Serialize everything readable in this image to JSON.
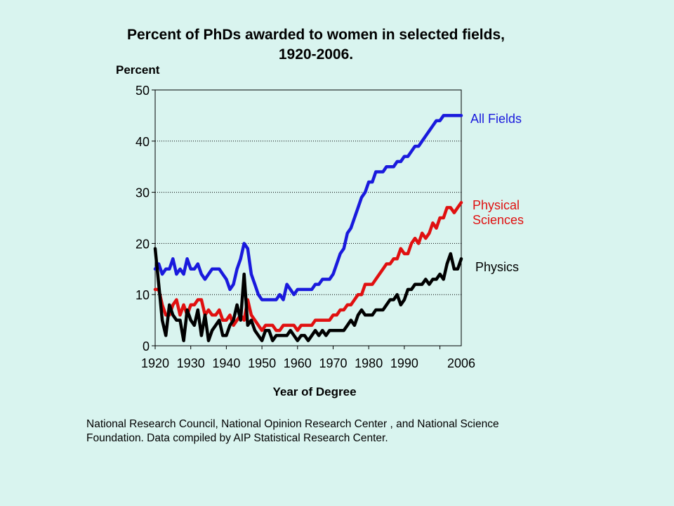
{
  "slide": {
    "background": "#d9f4ef",
    "title_line1": "Percent of PhDs awarded to women in selected fields,",
    "title_line2": "1920-2006.",
    "source_line1": "National Research Council, National Opinion Research Center , and National Science",
    "source_line2": "Foundation. Data compiled by AIP Statistical Research Center."
  },
  "chart_data": {
    "type": "line",
    "title": "Percent of PhDs awarded to women in selected fields, 1920-2006.",
    "xlabel": "Year of Degree",
    "ylabel": "Percent",
    "xlim": [
      1920,
      2006
    ],
    "ylim": [
      0,
      50
    ],
    "x_tick_values": [
      1920,
      1930,
      1940,
      1950,
      1960,
      1970,
      1980,
      1990,
      2006
    ],
    "x_tick_labels": [
      "1920",
      "1930",
      "1940",
      "1950",
      "1960",
      "1970",
      "1980",
      "1990",
      "2006"
    ],
    "y_tick_values": [
      0,
      10,
      20,
      30,
      40,
      50
    ],
    "y_tick_labels": [
      "0",
      "10",
      "20",
      "30",
      "40",
      "50"
    ],
    "grid": "dotted horizontal lines at 10, 20, 30, 40",
    "legend": "direct labels at right of lines",
    "series": [
      {
        "name": "All Fields",
        "color": "#1a1add",
        "points": [
          [
            1920,
            15
          ],
          [
            1921,
            16
          ],
          [
            1922,
            14
          ],
          [
            1923,
            15
          ],
          [
            1924,
            15
          ],
          [
            1925,
            17
          ],
          [
            1926,
            14
          ],
          [
            1927,
            15
          ],
          [
            1928,
            14
          ],
          [
            1929,
            17
          ],
          [
            1930,
            15
          ],
          [
            1931,
            15
          ],
          [
            1932,
            16
          ],
          [
            1933,
            14
          ],
          [
            1934,
            13
          ],
          [
            1935,
            14
          ],
          [
            1936,
            15
          ],
          [
            1937,
            15
          ],
          [
            1938,
            15
          ],
          [
            1939,
            14
          ],
          [
            1940,
            13
          ],
          [
            1941,
            11
          ],
          [
            1942,
            12
          ],
          [
            1943,
            15
          ],
          [
            1944,
            17
          ],
          [
            1945,
            20
          ],
          [
            1946,
            19
          ],
          [
            1947,
            14
          ],
          [
            1948,
            12
          ],
          [
            1949,
            10
          ],
          [
            1950,
            9
          ],
          [
            1951,
            9
          ],
          [
            1952,
            9
          ],
          [
            1953,
            9
          ],
          [
            1954,
            9
          ],
          [
            1955,
            10
          ],
          [
            1956,
            9
          ],
          [
            1957,
            12
          ],
          [
            1958,
            11
          ],
          [
            1959,
            10
          ],
          [
            1960,
            11
          ],
          [
            1961,
            11
          ],
          [
            1962,
            11
          ],
          [
            1963,
            11
          ],
          [
            1964,
            11
          ],
          [
            1965,
            12
          ],
          [
            1966,
            12
          ],
          [
            1967,
            13
          ],
          [
            1968,
            13
          ],
          [
            1969,
            13
          ],
          [
            1970,
            14
          ],
          [
            1971,
            16
          ],
          [
            1972,
            18
          ],
          [
            1973,
            19
          ],
          [
            1974,
            22
          ],
          [
            1975,
            23
          ],
          [
            1976,
            25
          ],
          [
            1977,
            27
          ],
          [
            1978,
            29
          ],
          [
            1979,
            30
          ],
          [
            1980,
            32
          ],
          [
            1981,
            32
          ],
          [
            1982,
            34
          ],
          [
            1983,
            34
          ],
          [
            1984,
            34
          ],
          [
            1985,
            35
          ],
          [
            1986,
            35
          ],
          [
            1987,
            35
          ],
          [
            1988,
            36
          ],
          [
            1989,
            36
          ],
          [
            1990,
            37
          ],
          [
            1991,
            37
          ],
          [
            1992,
            38
          ],
          [
            1993,
            39
          ],
          [
            1994,
            39
          ],
          [
            1995,
            40
          ],
          [
            1996,
            41
          ],
          [
            1997,
            42
          ],
          [
            1998,
            43
          ],
          [
            1999,
            44
          ],
          [
            2000,
            44
          ],
          [
            2001,
            45
          ],
          [
            2002,
            45
          ],
          [
            2003,
            45
          ],
          [
            2004,
            45
          ],
          [
            2005,
            45
          ],
          [
            2006,
            45
          ]
        ]
      },
      {
        "name": "Physical Sciences",
        "label_line1": "Physical",
        "label_line2": "Sciences",
        "color": "#e01010",
        "points": [
          [
            1920,
            11
          ],
          [
            1921,
            11
          ],
          [
            1922,
            8
          ],
          [
            1923,
            6
          ],
          [
            1924,
            6
          ],
          [
            1925,
            8
          ],
          [
            1926,
            9
          ],
          [
            1927,
            6
          ],
          [
            1928,
            8
          ],
          [
            1929,
            6
          ],
          [
            1930,
            8
          ],
          [
            1931,
            8
          ],
          [
            1932,
            9
          ],
          [
            1933,
            9
          ],
          [
            1934,
            6
          ],
          [
            1935,
            7
          ],
          [
            1936,
            6
          ],
          [
            1937,
            6
          ],
          [
            1938,
            7
          ],
          [
            1939,
            5
          ],
          [
            1940,
            5
          ],
          [
            1941,
            6
          ],
          [
            1942,
            4
          ],
          [
            1943,
            5
          ],
          [
            1944,
            6
          ],
          [
            1945,
            5
          ],
          [
            1946,
            9
          ],
          [
            1947,
            6
          ],
          [
            1948,
            5
          ],
          [
            1949,
            4
          ],
          [
            1950,
            3
          ],
          [
            1951,
            4
          ],
          [
            1952,
            4
          ],
          [
            1953,
            4
          ],
          [
            1954,
            3
          ],
          [
            1955,
            3
          ],
          [
            1956,
            4
          ],
          [
            1957,
            4
          ],
          [
            1958,
            4
          ],
          [
            1959,
            4
          ],
          [
            1960,
            3
          ],
          [
            1961,
            4
          ],
          [
            1962,
            4
          ],
          [
            1963,
            4
          ],
          [
            1964,
            4
          ],
          [
            1965,
            5
          ],
          [
            1966,
            5
          ],
          [
            1967,
            5
          ],
          [
            1968,
            5
          ],
          [
            1969,
            5
          ],
          [
            1970,
            6
          ],
          [
            1971,
            6
          ],
          [
            1972,
            7
          ],
          [
            1973,
            7
          ],
          [
            1974,
            8
          ],
          [
            1975,
            8
          ],
          [
            1976,
            9
          ],
          [
            1977,
            10
          ],
          [
            1978,
            10
          ],
          [
            1979,
            12
          ],
          [
            1980,
            12
          ],
          [
            1981,
            12
          ],
          [
            1982,
            13
          ],
          [
            1983,
            14
          ],
          [
            1984,
            15
          ],
          [
            1985,
            16
          ],
          [
            1986,
            16
          ],
          [
            1987,
            17
          ],
          [
            1988,
            17
          ],
          [
            1989,
            19
          ],
          [
            1990,
            18
          ],
          [
            1991,
            18
          ],
          [
            1992,
            20
          ],
          [
            1993,
            21
          ],
          [
            1994,
            20
          ],
          [
            1995,
            22
          ],
          [
            1996,
            21
          ],
          [
            1997,
            22
          ],
          [
            1998,
            24
          ],
          [
            1999,
            23
          ],
          [
            2000,
            25
          ],
          [
            2001,
            25
          ],
          [
            2002,
            27
          ],
          [
            2003,
            27
          ],
          [
            2004,
            26
          ],
          [
            2005,
            27
          ],
          [
            2006,
            28
          ]
        ]
      },
      {
        "name": "Physics",
        "color": "#000000",
        "points": [
          [
            1920,
            19
          ],
          [
            1921,
            12
          ],
          [
            1922,
            5
          ],
          [
            1923,
            2
          ],
          [
            1924,
            8
          ],
          [
            1925,
            6
          ],
          [
            1926,
            5
          ],
          [
            1927,
            5
          ],
          [
            1928,
            1
          ],
          [
            1929,
            7
          ],
          [
            1930,
            5
          ],
          [
            1931,
            4
          ],
          [
            1932,
            7
          ],
          [
            1933,
            2
          ],
          [
            1934,
            6
          ],
          [
            1935,
            1
          ],
          [
            1936,
            3
          ],
          [
            1937,
            4
          ],
          [
            1938,
            5
          ],
          [
            1939,
            2
          ],
          [
            1940,
            2
          ],
          [
            1941,
            4
          ],
          [
            1942,
            5
          ],
          [
            1943,
            8
          ],
          [
            1944,
            5
          ],
          [
            1945,
            14
          ],
          [
            1946,
            4
          ],
          [
            1947,
            5
          ],
          [
            1948,
            3
          ],
          [
            1949,
            2
          ],
          [
            1950,
            1
          ],
          [
            1951,
            3
          ],
          [
            1952,
            3
          ],
          [
            1953,
            1
          ],
          [
            1954,
            2
          ],
          [
            1955,
            2
          ],
          [
            1956,
            2
          ],
          [
            1957,
            2
          ],
          [
            1958,
            3
          ],
          [
            1959,
            2
          ],
          [
            1960,
            1
          ],
          [
            1961,
            2
          ],
          [
            1962,
            2
          ],
          [
            1963,
            1
          ],
          [
            1964,
            2
          ],
          [
            1965,
            3
          ],
          [
            1966,
            2
          ],
          [
            1967,
            3
          ],
          [
            1968,
            2
          ],
          [
            1969,
            3
          ],
          [
            1970,
            3
          ],
          [
            1971,
            3
          ],
          [
            1972,
            3
          ],
          [
            1973,
            3
          ],
          [
            1974,
            4
          ],
          [
            1975,
            5
          ],
          [
            1976,
            4
          ],
          [
            1977,
            6
          ],
          [
            1978,
            7
          ],
          [
            1979,
            6
          ],
          [
            1980,
            6
          ],
          [
            1981,
            6
          ],
          [
            1982,
            7
          ],
          [
            1983,
            7
          ],
          [
            1984,
            7
          ],
          [
            1985,
            8
          ],
          [
            1986,
            9
          ],
          [
            1987,
            9
          ],
          [
            1988,
            10
          ],
          [
            1989,
            8
          ],
          [
            1990,
            9
          ],
          [
            1991,
            11
          ],
          [
            1992,
            11
          ],
          [
            1993,
            12
          ],
          [
            1994,
            12
          ],
          [
            1995,
            12
          ],
          [
            1996,
            13
          ],
          [
            1997,
            12
          ],
          [
            1998,
            13
          ],
          [
            1999,
            13
          ],
          [
            2000,
            14
          ],
          [
            2001,
            13
          ],
          [
            2002,
            16
          ],
          [
            2003,
            18
          ],
          [
            2004,
            15
          ],
          [
            2005,
            15
          ],
          [
            2006,
            17
          ]
        ]
      }
    ]
  }
}
